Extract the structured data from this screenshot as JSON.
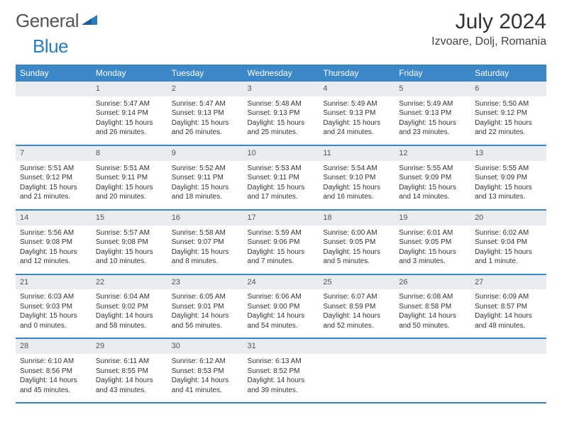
{
  "brand": {
    "part1": "General",
    "part2": "Blue"
  },
  "title": {
    "month": "July 2024",
    "location": "Izvoare, Dolj, Romania"
  },
  "style": {
    "header_bg": "#3b87c8",
    "header_fg": "#ffffff",
    "daynum_bg": "#e9edef",
    "row_border": "#3b87c8",
    "body_bg": "#ffffff",
    "brand_accent": "#2a7cc0",
    "title_fontsize": 30,
    "location_fontsize": 16,
    "weekday_fontsize": 12,
    "cell_fontsize": 10
  },
  "weekdays": [
    "Sunday",
    "Monday",
    "Tuesday",
    "Wednesday",
    "Thursday",
    "Friday",
    "Saturday"
  ],
  "weeks": [
    [
      {
        "n": "",
        "sr": "",
        "ss": "",
        "dl": ""
      },
      {
        "n": "1",
        "sr": "5:47 AM",
        "ss": "9:14 PM",
        "dl": "15 hours and 26 minutes."
      },
      {
        "n": "2",
        "sr": "5:47 AM",
        "ss": "9:13 PM",
        "dl": "15 hours and 26 minutes."
      },
      {
        "n": "3",
        "sr": "5:48 AM",
        "ss": "9:13 PM",
        "dl": "15 hours and 25 minutes."
      },
      {
        "n": "4",
        "sr": "5:49 AM",
        "ss": "9:13 PM",
        "dl": "15 hours and 24 minutes."
      },
      {
        "n": "5",
        "sr": "5:49 AM",
        "ss": "9:13 PM",
        "dl": "15 hours and 23 minutes."
      },
      {
        "n": "6",
        "sr": "5:50 AM",
        "ss": "9:12 PM",
        "dl": "15 hours and 22 minutes."
      }
    ],
    [
      {
        "n": "7",
        "sr": "5:51 AM",
        "ss": "9:12 PM",
        "dl": "15 hours and 21 minutes."
      },
      {
        "n": "8",
        "sr": "5:51 AM",
        "ss": "9:11 PM",
        "dl": "15 hours and 20 minutes."
      },
      {
        "n": "9",
        "sr": "5:52 AM",
        "ss": "9:11 PM",
        "dl": "15 hours and 18 minutes."
      },
      {
        "n": "10",
        "sr": "5:53 AM",
        "ss": "9:11 PM",
        "dl": "15 hours and 17 minutes."
      },
      {
        "n": "11",
        "sr": "5:54 AM",
        "ss": "9:10 PM",
        "dl": "15 hours and 16 minutes."
      },
      {
        "n": "12",
        "sr": "5:55 AM",
        "ss": "9:09 PM",
        "dl": "15 hours and 14 minutes."
      },
      {
        "n": "13",
        "sr": "5:55 AM",
        "ss": "9:09 PM",
        "dl": "15 hours and 13 minutes."
      }
    ],
    [
      {
        "n": "14",
        "sr": "5:56 AM",
        "ss": "9:08 PM",
        "dl": "15 hours and 12 minutes."
      },
      {
        "n": "15",
        "sr": "5:57 AM",
        "ss": "9:08 PM",
        "dl": "15 hours and 10 minutes."
      },
      {
        "n": "16",
        "sr": "5:58 AM",
        "ss": "9:07 PM",
        "dl": "15 hours and 8 minutes."
      },
      {
        "n": "17",
        "sr": "5:59 AM",
        "ss": "9:06 PM",
        "dl": "15 hours and 7 minutes."
      },
      {
        "n": "18",
        "sr": "6:00 AM",
        "ss": "9:05 PM",
        "dl": "15 hours and 5 minutes."
      },
      {
        "n": "19",
        "sr": "6:01 AM",
        "ss": "9:05 PM",
        "dl": "15 hours and 3 minutes."
      },
      {
        "n": "20",
        "sr": "6:02 AM",
        "ss": "9:04 PM",
        "dl": "15 hours and 1 minute."
      }
    ],
    [
      {
        "n": "21",
        "sr": "6:03 AM",
        "ss": "9:03 PM",
        "dl": "15 hours and 0 minutes."
      },
      {
        "n": "22",
        "sr": "6:04 AM",
        "ss": "9:02 PM",
        "dl": "14 hours and 58 minutes."
      },
      {
        "n": "23",
        "sr": "6:05 AM",
        "ss": "9:01 PM",
        "dl": "14 hours and 56 minutes."
      },
      {
        "n": "24",
        "sr": "6:06 AM",
        "ss": "9:00 PM",
        "dl": "14 hours and 54 minutes."
      },
      {
        "n": "25",
        "sr": "6:07 AM",
        "ss": "8:59 PM",
        "dl": "14 hours and 52 minutes."
      },
      {
        "n": "26",
        "sr": "6:08 AM",
        "ss": "8:58 PM",
        "dl": "14 hours and 50 minutes."
      },
      {
        "n": "27",
        "sr": "6:09 AM",
        "ss": "8:57 PM",
        "dl": "14 hours and 48 minutes."
      }
    ],
    [
      {
        "n": "28",
        "sr": "6:10 AM",
        "ss": "8:56 PM",
        "dl": "14 hours and 45 minutes."
      },
      {
        "n": "29",
        "sr": "6:11 AM",
        "ss": "8:55 PM",
        "dl": "14 hours and 43 minutes."
      },
      {
        "n": "30",
        "sr": "6:12 AM",
        "ss": "8:53 PM",
        "dl": "14 hours and 41 minutes."
      },
      {
        "n": "31",
        "sr": "6:13 AM",
        "ss": "8:52 PM",
        "dl": "14 hours and 39 minutes."
      },
      {
        "n": "",
        "sr": "",
        "ss": "",
        "dl": ""
      },
      {
        "n": "",
        "sr": "",
        "ss": "",
        "dl": ""
      },
      {
        "n": "",
        "sr": "",
        "ss": "",
        "dl": ""
      }
    ]
  ],
  "labels": {
    "sunrise": "Sunrise:",
    "sunset": "Sunset:",
    "daylight": "Daylight:"
  }
}
